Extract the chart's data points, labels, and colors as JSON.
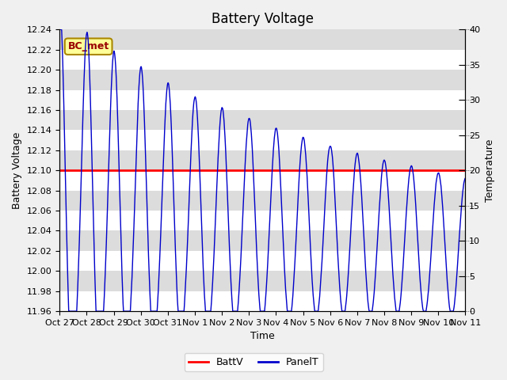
{
  "title": "Battery Voltage",
  "xlabel": "Time",
  "ylabel_left": "Battery Voltage",
  "ylabel_right": "Temperature",
  "ylim_left": [
    11.96,
    12.24
  ],
  "ylim_right": [
    0,
    40
  ],
  "batt_v_constant": 12.1,
  "batt_color": "#ff0000",
  "panel_color": "#0000cc",
  "fig_bg_color": "#f0f0f0",
  "plot_bg_color": "#e8e8e8",
  "legend_label_batt": "BattV",
  "legend_label_panel": "PanelT",
  "annotation_text": "BC_met",
  "annotation_bg": "#ffff99",
  "annotation_border": "#aa8800",
  "annotation_text_color": "#990000",
  "x_tick_labels": [
    "Oct 27",
    "Oct 28",
    "Oct 29",
    "Oct 30",
    "Oct 31",
    "Nov 1",
    "Nov 2",
    "Nov 3",
    "Nov 4",
    "Nov 5",
    "Nov 6",
    "Nov 7",
    "Nov 8",
    "Nov 9",
    "Nov 10",
    "Nov 11"
  ],
  "x_ticks": [
    0,
    1,
    2,
    3,
    4,
    5,
    6,
    7,
    8,
    9,
    10,
    11,
    12,
    13,
    14,
    15
  ],
  "left_yticks": [
    11.96,
    11.98,
    12.0,
    12.02,
    12.04,
    12.06,
    12.08,
    12.1,
    12.12,
    12.14,
    12.16,
    12.18,
    12.2,
    12.22,
    12.24
  ],
  "right_yticks": [
    0,
    5,
    10,
    15,
    20,
    25,
    30,
    35,
    40
  ],
  "grid_color": "#ffffff",
  "alt_band_color": "#dcdcdc",
  "title_fontsize": 12,
  "axis_fontsize": 9,
  "tick_fontsize": 8
}
